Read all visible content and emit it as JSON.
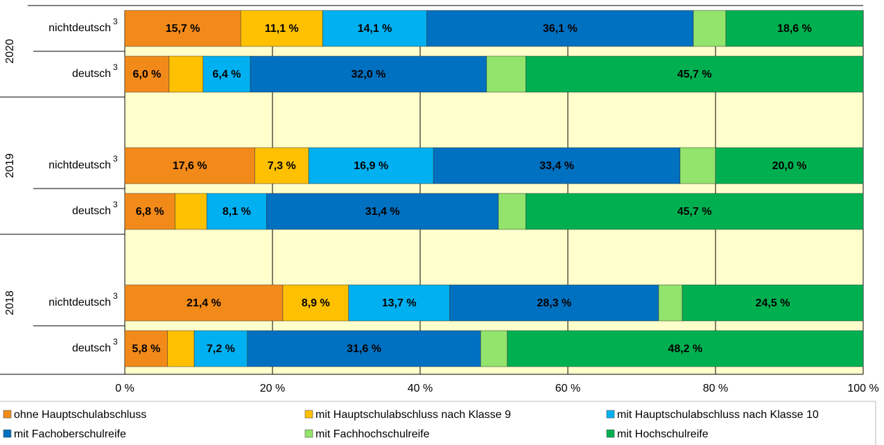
{
  "chart_data": {
    "type": "stacked_barh",
    "categories": [
      "nichtdeutsch",
      "deutsch",
      "nichtdeutsch",
      "deutsch",
      "nichtdeutsch",
      "deutsch"
    ],
    "footnote_mark": "3",
    "groups": [
      "2020",
      "2019",
      "2018"
    ],
    "series": [
      {
        "name": "ohne Hauptschulabschluss",
        "color": "#f28a1a",
        "label_color": "#000000",
        "values": [
          15.7,
          6.0,
          17.6,
          6.8,
          21.4,
          5.8
        ],
        "value_labels": [
          "15,7 %",
          "6,0 %",
          "17,6 %",
          "6,8 %",
          "21,4 %",
          "5,8 %"
        ]
      },
      {
        "name": "mit Hauptschulabschluss nach Klasse 9",
        "color": "#ffc000",
        "label_color": "#000000",
        "values": [
          11.1,
          4.6,
          7.3,
          4.3,
          8.9,
          3.6
        ],
        "value_labels": [
          "11,1 %",
          null,
          "7,3 %",
          null,
          "8,9 %",
          null
        ]
      },
      {
        "name": "mit Hauptschulabschluss nach Klasse 10",
        "color": "#00b0f0",
        "label_color": "#000000",
        "values": [
          14.1,
          6.4,
          16.9,
          8.1,
          13.7,
          7.2
        ],
        "value_labels": [
          "14,1 %",
          "6,4 %",
          "16,9 %",
          "8,1 %",
          "13,7 %",
          "7,2 %"
        ]
      },
      {
        "name": "mit Fachoberschulreife",
        "color": "#0070c0",
        "label_color": "#ffffff",
        "values": [
          36.1,
          32.0,
          33.4,
          31.4,
          28.3,
          31.6
        ],
        "value_labels": [
          "36,1 %",
          "32,0 %",
          "33,4 %",
          "31,4 %",
          "28,3 %",
          "31,6 %"
        ]
      },
      {
        "name": "mit Fachhochschulreife",
        "color": "#92e46c",
        "label_color": "#000000",
        "values": [
          4.4,
          5.3,
          4.8,
          3.7,
          3.2,
          3.6
        ],
        "value_labels": [
          null,
          null,
          null,
          null,
          null,
          null
        ]
      },
      {
        "name": "mit Hochschulreife",
        "color": "#00b050",
        "label_color": "#000000",
        "values": [
          18.6,
          45.7,
          20.0,
          45.7,
          24.5,
          48.2
        ],
        "value_labels": [
          "18,6 %",
          "45,7 %",
          "20,0 %",
          "45,7 %",
          "24,5 %",
          "48,2 %"
        ]
      }
    ],
    "xlim": [
      0,
      100
    ],
    "xticks": [
      {
        "value": 0,
        "label": "0 %"
      },
      {
        "value": 20,
        "label": "20 %"
      },
      {
        "value": 40,
        "label": "40 %"
      },
      {
        "value": 60,
        "label": "60 %"
      },
      {
        "value": 80,
        "label": "80 %"
      },
      {
        "value": 100,
        "label": "100 %"
      }
    ],
    "grid": true,
    "legend": "bottom",
    "background": "#ffffcc"
  }
}
